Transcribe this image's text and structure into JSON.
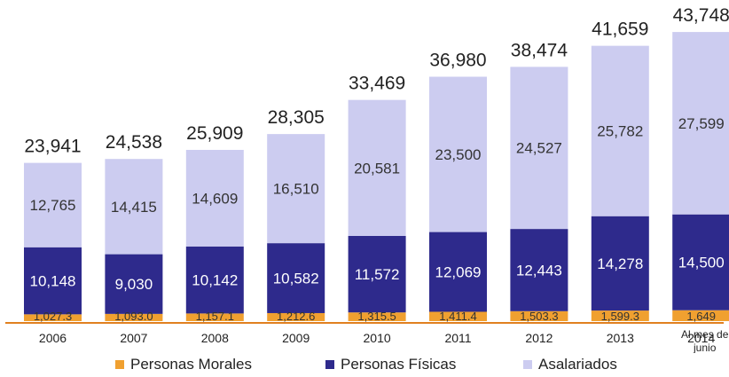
{
  "chart_data": {
    "type": "bar",
    "stacked": true,
    "categories": [
      "2006",
      "2007",
      "2008",
      "2009",
      "2010",
      "2011",
      "2012",
      "2013",
      "2014"
    ],
    "category_note": {
      "index": 8,
      "text_lines": [
        "Al mes de",
        "junio"
      ]
    },
    "series": [
      {
        "name": "Personas Morales",
        "color": "#f0a030",
        "values": [
          1027.3,
          1093.0,
          1157.1,
          1212.6,
          1315.5,
          1411.4,
          1503.3,
          1599.3,
          1649
        ],
        "labels": [
          "1,027.3",
          "1,093.0",
          "1,157.1",
          "1,212.6",
          "1,315.5",
          "1,411.4",
          "1,503.3",
          "1,599.3",
          "1,649"
        ]
      },
      {
        "name": "Personas Físicas",
        "color": "#2e2a8c",
        "values": [
          10148,
          9030,
          10142,
          10582,
          11572,
          12069,
          12443,
          14278,
          14500
        ],
        "labels": [
          "10,148",
          "9,030",
          "10,142",
          "10,582",
          "11,572",
          "12,069",
          "12,443",
          "14,278",
          "14,500"
        ]
      },
      {
        "name": "Asalariados",
        "color": "#ccccf0",
        "values": [
          12765,
          14415,
          14609,
          16510,
          20581,
          23500,
          24527,
          25782,
          27599
        ],
        "labels": [
          "12,765",
          "14,415",
          "14,609",
          "16,510",
          "20,581",
          "23,500",
          "24,527",
          "25,782",
          "27,599"
        ]
      }
    ],
    "totals": [
      23941,
      24538,
      25909,
      28305,
      33469,
      36980,
      38474,
      41659,
      43748
    ],
    "total_labels": [
      "23,941",
      "24,538",
      "25,909",
      "28,305",
      "33,469",
      "36,980",
      "38,474",
      "41,659",
      "43,748"
    ],
    "ylim": [
      0,
      45000
    ],
    "legend_position": "bottom",
    "grid": false
  }
}
